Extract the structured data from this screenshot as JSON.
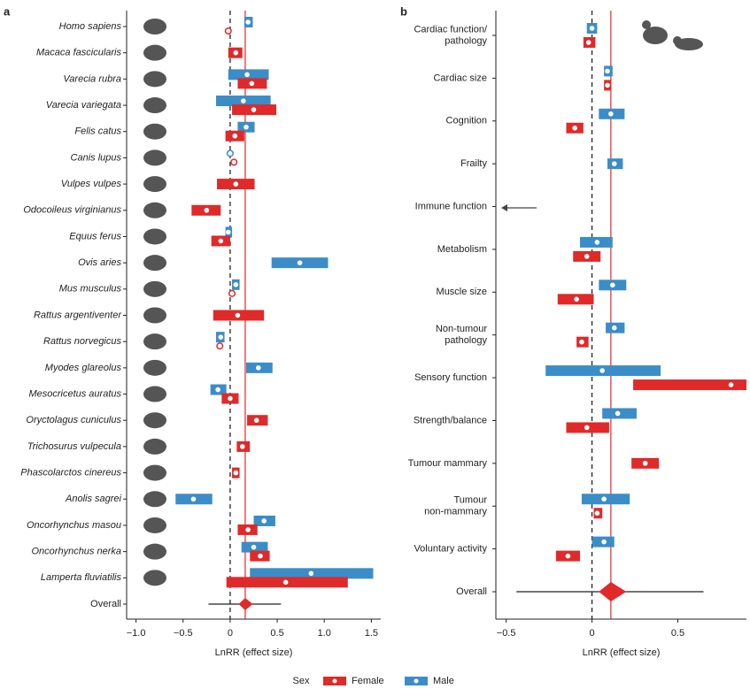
{
  "legend": {
    "title": "Sex"
  },
  "chart_data": [
    {
      "type": "forest",
      "panel_label": "a",
      "xlabel": "LnRR (effect size)",
      "xlim": [
        -1.1,
        1.6
      ],
      "xticks": [
        {
          "value": -1,
          "label": "−1.0"
        },
        {
          "value": -0.5,
          "label": "−0.5"
        },
        0,
        0.5,
        {
          "value": 1,
          "label": "1.0"
        },
        1.5
      ],
      "categories": [
        "Homo sapiens",
        "Macaca fascicularis",
        "Varecia rubra",
        "Varecia variegata",
        "Felis catus",
        "Canis lupus",
        "Vulpes vulpes",
        "Odocoileus virginianus",
        "Equus ferus",
        "Ovis aries",
        "Mus musculus",
        "Rattus argentiventer",
        "Rattus norvegicus",
        "Myodes glareolus",
        "Mesocricetus auratus",
        "Oryctolagus cuniculus",
        "Trichosurus vulpecula",
        "Phascolarctos cinereus",
        "Anolis sagrei",
        "Oncorhynchus masou",
        "Oncorhynchus nerka",
        "Lamperta fluviatilis"
      ],
      "series": [
        {
          "name": "Male",
          "color": "#3b8dc8",
          "values": [
            0.19,
            null,
            0.18,
            0.14,
            0.17,
            0.0,
            null,
            null,
            -0.02,
            0.74,
            0.06,
            null,
            -0.1,
            0.3,
            -0.13,
            null,
            null,
            null,
            -0.39,
            0.36,
            0.25,
            0.86
          ],
          "lo": [
            0.15,
            null,
            -0.02,
            -0.15,
            0.08,
            null,
            null,
            null,
            -0.05,
            0.44,
            0.02,
            null,
            -0.15,
            0.17,
            -0.21,
            null,
            null,
            null,
            -0.58,
            0.25,
            0.12,
            0.21
          ],
          "hi": [
            0.24,
            null,
            0.41,
            0.43,
            0.26,
            null,
            null,
            null,
            0.02,
            1.04,
            0.1,
            null,
            -0.06,
            0.45,
            -0.04,
            null,
            null,
            null,
            -0.19,
            0.48,
            0.4,
            1.52
          ]
        },
        {
          "name": "Female",
          "color": "#e02a2a",
          "values": [
            -0.02,
            0.06,
            0.23,
            0.25,
            0.05,
            0.04,
            0.06,
            -0.25,
            -0.1,
            null,
            0.02,
            0.08,
            -0.11,
            null,
            0.0,
            0.28,
            0.13,
            0.06,
            null,
            0.19,
            0.32,
            0.59
          ],
          "lo": [
            null,
            -0.02,
            0.08,
            0.02,
            -0.05,
            null,
            -0.14,
            -0.41,
            -0.2,
            null,
            null,
            -0.18,
            null,
            null,
            -0.09,
            0.18,
            0.07,
            0.02,
            null,
            0.08,
            0.21,
            -0.04
          ],
          "hi": [
            null,
            0.13,
            0.39,
            0.49,
            0.15,
            null,
            0.26,
            -0.1,
            0.0,
            null,
            null,
            0.36,
            null,
            null,
            0.09,
            0.4,
            0.21,
            0.1,
            null,
            0.29,
            0.42,
            1.25
          ]
        }
      ],
      "overall": {
        "label": "Overall",
        "value": 0.16,
        "ci_low": 0.09,
        "ci_high": 0.24,
        "pi_low": -0.23,
        "pi_high": 0.54
      }
    },
    {
      "type": "forest",
      "panel_label": "b",
      "xlabel": "LnRR (effect size)",
      "xlim": [
        -0.56,
        0.9
      ],
      "xticks": [
        {
          "value": -0.5,
          "label": "−0.5"
        },
        0,
        0.5
      ],
      "categories": [
        [
          "Cardiac function/",
          "pathology"
        ],
        [
          "Cardiac size"
        ],
        [
          "Cognition"
        ],
        [
          "Frailty"
        ],
        [
          "Immune function"
        ],
        [
          "Metabolism"
        ],
        [
          "Muscle size"
        ],
        [
          "Non-tumour",
          "pathology"
        ],
        [
          "Sensory function"
        ],
        [
          "Strength/balance"
        ],
        [
          "Tumour mammary"
        ],
        [
          "Tumour",
          "non-mammary"
        ],
        [
          "Voluntary activity"
        ]
      ],
      "series": [
        {
          "name": "Male",
          "color": "#3b8dc8",
          "values": [
            0.0,
            0.09,
            0.11,
            0.13,
            null,
            0.03,
            0.12,
            0.13,
            0.06,
            0.15,
            null,
            0.07,
            0.07
          ],
          "lo": [
            -0.03,
            0.07,
            0.04,
            0.09,
            null,
            -0.07,
            0.04,
            0.08,
            -0.27,
            0.06,
            null,
            -0.06,
            0.0
          ],
          "hi": [
            0.03,
            0.12,
            0.19,
            0.18,
            null,
            0.12,
            0.2,
            0.19,
            0.4,
            0.26,
            null,
            0.22,
            0.13
          ]
        },
        {
          "name": "Female",
          "color": "#e02a2a",
          "values": [
            -0.02,
            0.09,
            -0.1,
            null,
            null,
            -0.03,
            -0.09,
            -0.06,
            0.81,
            -0.03,
            0.31,
            0.03,
            -0.14
          ],
          "lo": [
            -0.05,
            0.07,
            -0.15,
            null,
            null,
            -0.11,
            -0.2,
            -0.09,
            0.24,
            -0.15,
            0.23,
            0.01,
            -0.21
          ],
          "hi": [
            0.02,
            0.11,
            -0.05,
            null,
            null,
            0.05,
            0.01,
            -0.02,
            0.9,
            0.1,
            0.39,
            0.06,
            -0.07
          ]
        }
      ],
      "overall": {
        "label": "Overall",
        "value": 0.11,
        "ci_low": 0.04,
        "ci_high": 0.2,
        "pi_low": -0.44,
        "pi_high": 0.65
      }
    }
  ]
}
